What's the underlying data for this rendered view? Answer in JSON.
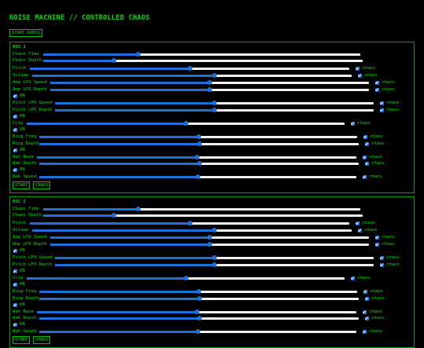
{
  "app": {
    "title": "NOISE MACHINE // CONTROLLED CHAOS",
    "start_audio_label": "START AUDIO"
  },
  "labels": {
    "chaos": "chaos",
    "on": "ON",
    "start": "START",
    "chaos_button": "CHAOS"
  },
  "oscillators": [
    {
      "title": "OSC 1",
      "controls": {
        "chaos_time": 0.3,
        "chaos_depth": 0.22,
        "pitch": 0.5,
        "volume": 0.57,
        "amp_lfo_speed": 0.5,
        "amp_lfo_depth": 0.5,
        "pitch_lfo_speed": 0.5,
        "pitch_lfo_depth": 0.5,
        "clip": 0.5,
        "ring_freq": 0.5,
        "ring_depth": 0.5,
        "wah_base": 0.5,
        "wah_depth": 0.5,
        "wah_speed": 0.5
      }
    },
    {
      "title": "OSC 2",
      "controls": {
        "chaos_time": 0.3,
        "chaos_depth": 0.22,
        "pitch": 0.5,
        "volume": 0.57,
        "amp_lfo_speed": 0.5,
        "amp_lfo_depth": 0.5,
        "pitch_lfo_speed": 0.5,
        "pitch_lfo_depth": 0.5,
        "clip": 0.5,
        "ring_freq": 0.5,
        "ring_depth": 0.5,
        "wah_base": 0.5,
        "wah_depth": 0.5,
        "wah_speed": 0.5
      }
    }
  ],
  "control_labels": {
    "chaos_time": "Chaos Time",
    "chaos_depth": "Chaos Depth",
    "pitch": "Pitch",
    "volume": "Volume",
    "amp_lfo_speed": "Amp LFO Speed",
    "amp_lfo_depth": "Amp LFO Depth",
    "pitch_lfo_speed": "Pitch LFO Speed",
    "pitch_lfo_depth": "Pitch LFO Depth",
    "clip": "Clip",
    "ring_freq": "Ring Freq",
    "ring_depth": "Ring Depth",
    "wah_base": "Wah Base",
    "wah_depth": "Wah Depth",
    "wah_speed": "Wah Speed"
  }
}
